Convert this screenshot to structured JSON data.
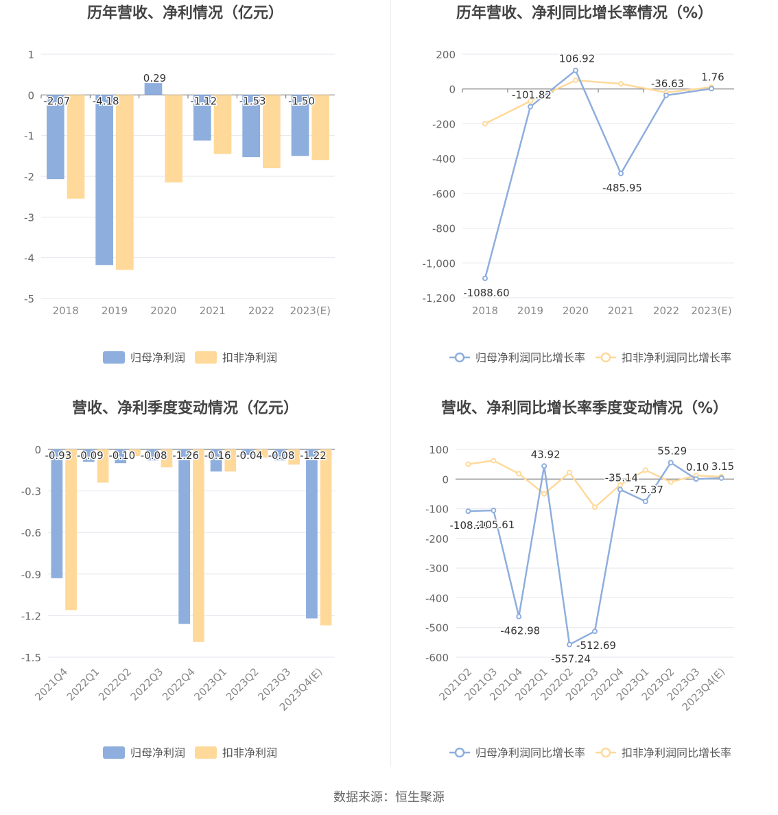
{
  "source": "数据来源：恒生聚源",
  "colors": {
    "primary": "#8eaede",
    "secondary": "#ffd99a"
  },
  "chart_data": [
    {
      "type": "bar",
      "title": "历年营收、净利情况（亿元）",
      "categories": [
        "2018",
        "2019",
        "2020",
        "2021",
        "2022",
        "2023(E)"
      ],
      "series": [
        {
          "name": "归母净利润",
          "values": [
            -2.07,
            -4.18,
            0.29,
            -1.12,
            -1.53,
            -1.5
          ],
          "labels": [
            "-2.07",
            "-4.18",
            "0.29",
            "-1.12",
            "-1.53",
            "-1.50"
          ]
        },
        {
          "name": "扣非净利润",
          "values": [
            -2.55,
            -4.3,
            -2.15,
            -1.45,
            -1.8,
            -1.6
          ]
        }
      ],
      "yticks": [
        "1",
        "0",
        "-1",
        "-2",
        "-3",
        "-4",
        "-5"
      ],
      "ylim": [
        -5,
        1
      ],
      "legend": "bottom"
    },
    {
      "type": "line",
      "title": "历年营收、净利同比增长率情况（%）",
      "categories": [
        "2018",
        "2019",
        "2020",
        "2021",
        "2022",
        "2023(E)"
      ],
      "series": [
        {
          "name": "归母净利润同比增长率",
          "values": [
            -1088.6,
            -101.82,
            106.92,
            -485.95,
            -36.63,
            1.76
          ],
          "labels": [
            "-1088.60",
            "-101.82",
            "106.92",
            "-485.95",
            "-36.63",
            "1.76"
          ]
        },
        {
          "name": "扣非净利润同比增长率",
          "values": [
            -200,
            -70,
            50,
            30,
            -20,
            10
          ]
        }
      ],
      "yticks": [
        "200",
        "0",
        "-200",
        "-400",
        "-600",
        "-800",
        "-1,000",
        "-1,200"
      ],
      "ylim": [
        -1200,
        200
      ],
      "legend": "bottom"
    },
    {
      "type": "bar",
      "title": "营收、净利季度变动情况（亿元）",
      "categories": [
        "2021Q4",
        "2022Q1",
        "2022Q2",
        "2022Q3",
        "2022Q4",
        "2023Q1",
        "2023Q2",
        "2023Q3",
        "2023Q4(E)"
      ],
      "series": [
        {
          "name": "归母净利润",
          "values": [
            -0.93,
            -0.09,
            -0.1,
            -0.08,
            -1.26,
            -0.16,
            -0.04,
            -0.08,
            -1.22
          ],
          "labels": [
            "-0.93",
            "-0.09",
            "-0.10",
            "-0.08",
            "-1.26",
            "-0.16",
            "-0.04",
            "-0.08",
            "-1.22"
          ]
        },
        {
          "name": "扣非净利润",
          "values": [
            -1.16,
            -0.24,
            -0.05,
            -0.13,
            -1.39,
            -0.16,
            -0.06,
            -0.11,
            -1.27
          ]
        }
      ],
      "yticks": [
        "0",
        "-0.3",
        "-0.6",
        "-0.9",
        "-1.2",
        "-1.5"
      ],
      "ylim": [
        -1.5,
        0
      ],
      "legend": "bottom"
    },
    {
      "type": "line",
      "title": "营收、净利同比增长率季度变动情况（%）",
      "categories": [
        "2021Q2",
        "2021Q3",
        "2021Q4",
        "2022Q1",
        "2022Q2",
        "2022Q3",
        "2022Q4",
        "2023Q1",
        "2023Q2",
        "2023Q3",
        "2023Q4(E)"
      ],
      "series": [
        {
          "name": "归母净利润同比增长率",
          "values": [
            -108.26,
            -105.61,
            -462.98,
            43.92,
            -557.24,
            -512.69,
            -35.14,
            -75.37,
            55.29,
            0.1,
            3.15
          ],
          "labels": [
            "-108.26",
            "-105.61",
            "-462.98",
            "43.92",
            "-557.24",
            "-512.69",
            "-35.14",
            "-75.37",
            "55.29",
            "0.10",
            "3.15"
          ]
        },
        {
          "name": "扣非净利润同比增长率",
          "values": [
            50,
            62,
            18,
            -50,
            22,
            -95,
            -20,
            30,
            -10,
            12,
            8
          ]
        }
      ],
      "yticks": [
        "100",
        "0",
        "-100",
        "-200",
        "-300",
        "-400",
        "-500",
        "-600"
      ],
      "ylim": [
        -600,
        100
      ],
      "legend": "bottom"
    }
  ]
}
